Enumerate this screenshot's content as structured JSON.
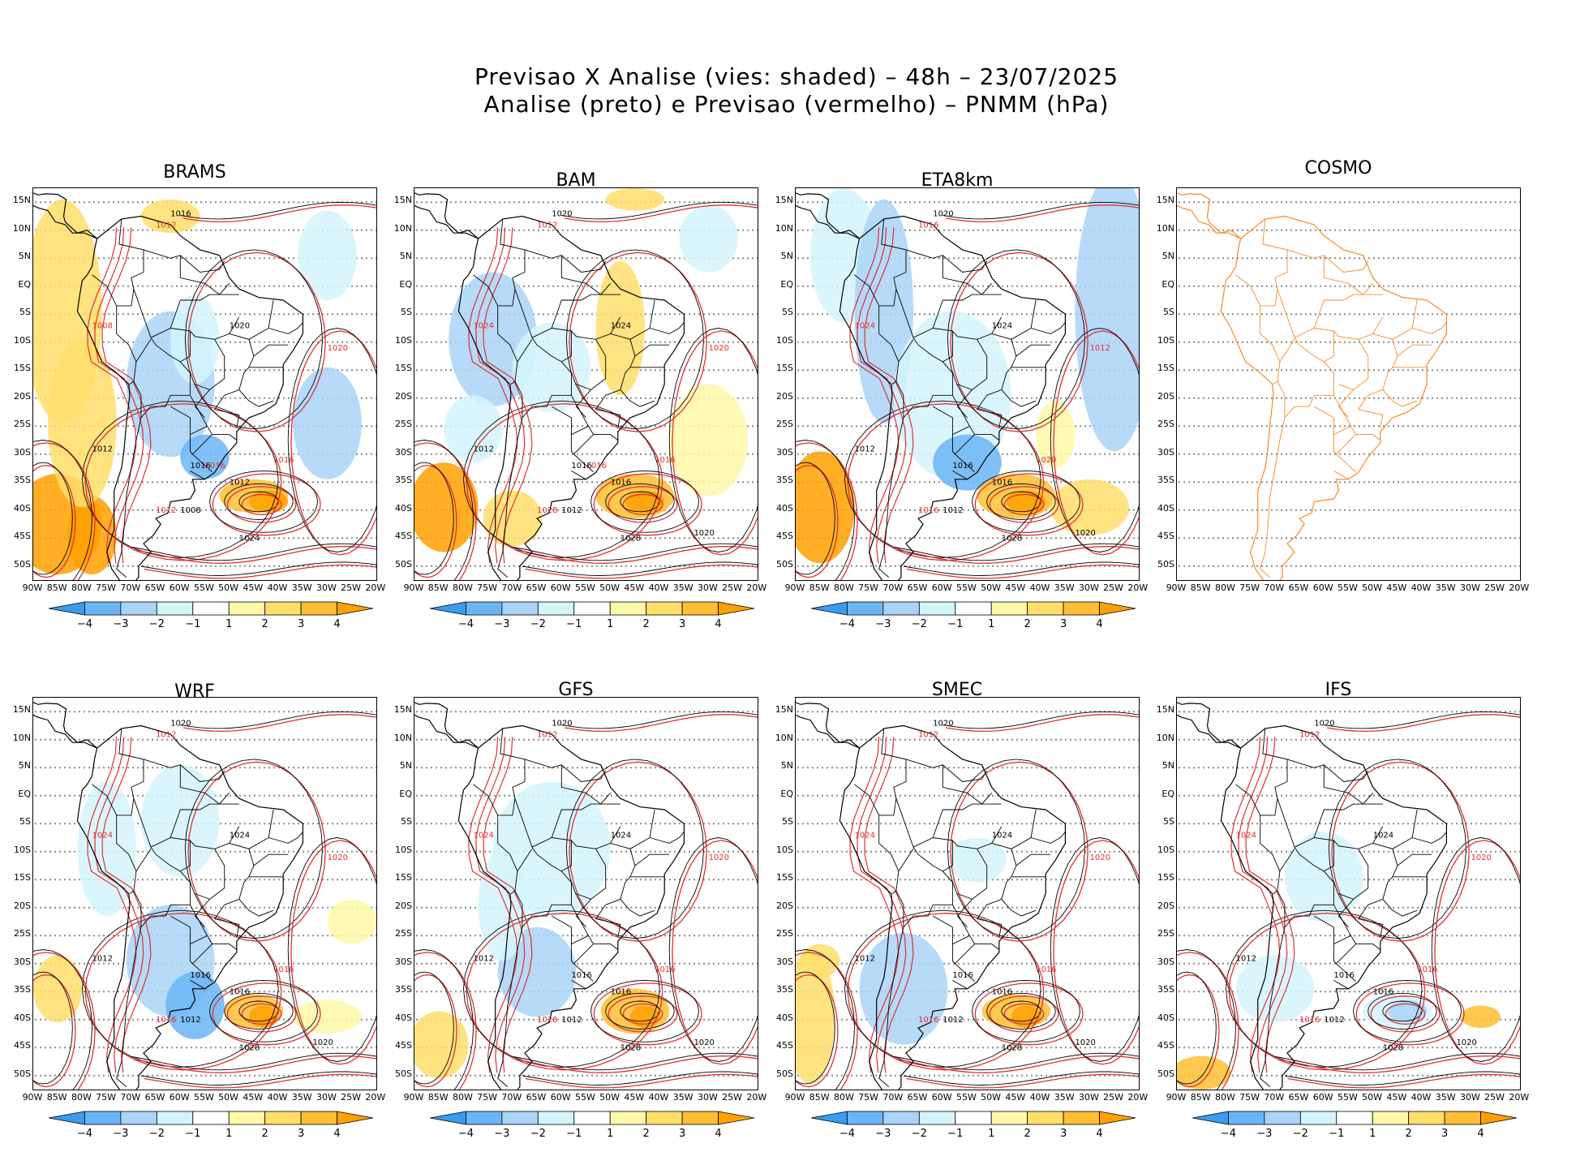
{
  "title": {
    "line1": "Previsao X Analise (vies: shaded) – 48h – 23/07/2025",
    "line2": "Analise (preto) e Previsao (vermelho) – PNMM (hPa)"
  },
  "lat_labels": [
    "15N",
    "10N",
    "5N",
    "EQ",
    "5S",
    "10S",
    "15S",
    "20S",
    "25S",
    "30S",
    "35S",
    "40S",
    "45S",
    "50S"
  ],
  "lon_labels": [
    "90W",
    "85W",
    "80W",
    "75W",
    "70W",
    "65W",
    "60W",
    "55W",
    "50W",
    "45W",
    "40W",
    "35W",
    "30W",
    "25W",
    "20W"
  ],
  "colorbar": {
    "labels": [
      "−4",
      "−3",
      "−2",
      "−1",
      "1",
      "2",
      "3",
      "4"
    ],
    "colors": [
      "#3a9bf0",
      "#6ab5f5",
      "#a9d3f7",
      "#d4f4fb",
      "#ffffff",
      "#fff8a8",
      "#ffde6a",
      "#ffbe33",
      "#ffa000"
    ]
  },
  "colors": {
    "analysis": "#000000",
    "forecast": "#e03030",
    "coastline": "#000000",
    "cosmo_coast": "#f08c28"
  },
  "panels": [
    {
      "id": "brams",
      "name": "BRAMS",
      "labels_black": [
        "1008",
        "1012",
        "1016",
        "1020",
        "1024",
        "1012",
        "1016"
      ],
      "labels_red": [
        "1012",
        "1016",
        "1020",
        "1008",
        "1012",
        "1016"
      ]
    },
    {
      "id": "bam",
      "name": "BAM",
      "labels_black": [
        "1012",
        "1016",
        "1020",
        "1024",
        "1028",
        "1012",
        "1016",
        "1020"
      ],
      "labels_red": [
        "1012",
        "1016",
        "1020",
        "1024",
        "1028",
        "1016"
      ]
    },
    {
      "id": "eta8km",
      "name": "ETA8km",
      "labels_black": [
        "1012",
        "1016",
        "1020",
        "1024",
        "1028",
        "1012",
        "1016",
        "1020"
      ],
      "labels_red": [
        "1016",
        "1020",
        "1012",
        "1024",
        "1016"
      ]
    },
    {
      "id": "cosmo",
      "name": "COSMO",
      "labels_black": [],
      "labels_red": []
    },
    {
      "id": "wrf",
      "name": "WRF",
      "labels_black": [
        "1012",
        "1016",
        "1020",
        "1024",
        "1028",
        "1012",
        "1016",
        "1020"
      ],
      "labels_red": [
        "1012",
        "1016",
        "1020",
        "1024",
        "1016"
      ]
    },
    {
      "id": "gfs",
      "name": "GFS",
      "labels_black": [
        "1012",
        "1016",
        "1020",
        "1024",
        "1028",
        "1012",
        "1016",
        "1020"
      ],
      "labels_red": [
        "1012",
        "1016",
        "1020",
        "1024",
        "1028"
      ]
    },
    {
      "id": "smec",
      "name": "SMEC",
      "labels_black": [
        "1012",
        "1016",
        "1020",
        "1024",
        "1028",
        "1012",
        "1016",
        "1020"
      ],
      "labels_red": [
        "1012",
        "1016",
        "1020",
        "1024",
        "1016"
      ]
    },
    {
      "id": "ifs",
      "name": "IFS",
      "labels_black": [
        "1012",
        "1016",
        "1020",
        "1024",
        "1028",
        "1012",
        "1016",
        "1020"
      ],
      "labels_red": [
        "1012",
        "1016",
        "1020",
        "1024",
        "1016"
      ]
    }
  ]
}
